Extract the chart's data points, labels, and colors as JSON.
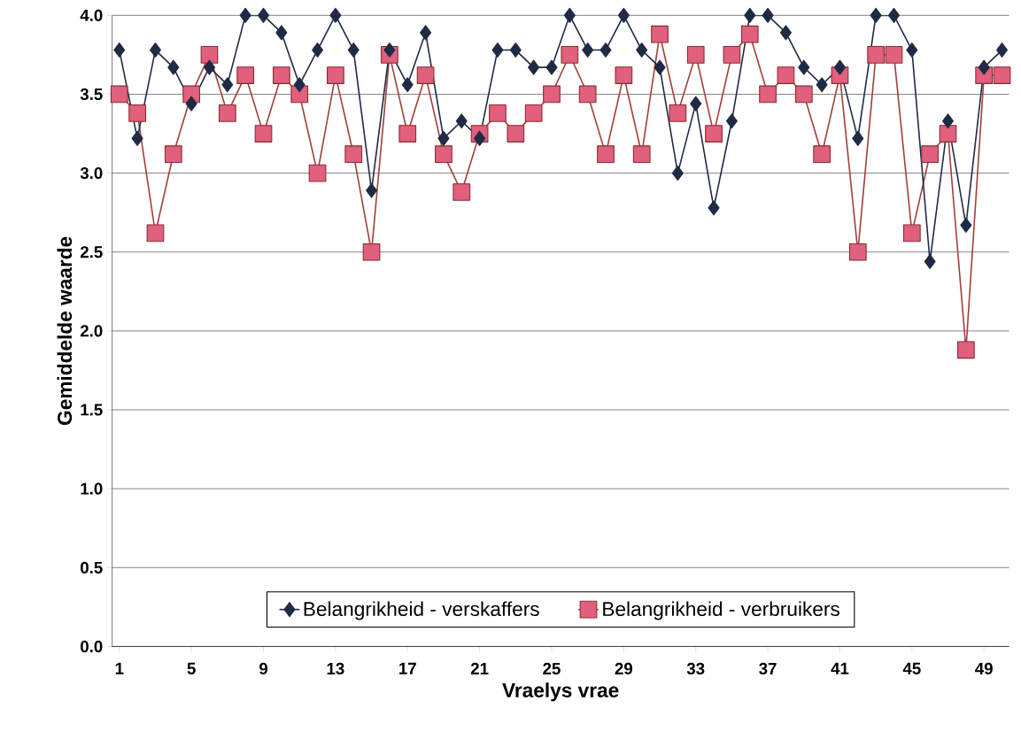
{
  "chart_data": {
    "type": "line",
    "xlabel": "Vraelys vrae",
    "ylabel": "Gemiddelde waarde",
    "x": [
      1,
      2,
      3,
      4,
      5,
      6,
      7,
      8,
      9,
      10,
      11,
      12,
      13,
      14,
      15,
      16,
      17,
      18,
      19,
      20,
      21,
      22,
      23,
      24,
      25,
      26,
      27,
      28,
      29,
      30,
      31,
      32,
      33,
      34,
      35,
      36,
      37,
      38,
      39,
      40,
      41,
      42,
      43,
      44,
      45,
      46,
      47,
      48,
      49,
      50
    ],
    "xlim": [
      0.6,
      50.4
    ],
    "xticks": [
      1,
      5,
      9,
      13,
      17,
      21,
      25,
      29,
      33,
      37,
      41,
      45,
      49
    ],
    "ylim": [
      0,
      4
    ],
    "yticks": [
      {
        "value": 0,
        "label": "0.0"
      },
      {
        "value": 0.5,
        "label": "0.5"
      },
      {
        "value": 1,
        "label": "1.0"
      },
      {
        "value": 1.5,
        "label": "1.5"
      },
      {
        "value": 2,
        "label": "2.0"
      },
      {
        "value": 2.5,
        "label": "2.5"
      },
      {
        "value": 3,
        "label": "3.0"
      },
      {
        "value": 3.5,
        "label": "3.5"
      },
      {
        "value": 4,
        "label": "4.0"
      }
    ],
    "grid": "y",
    "legend": "bottom",
    "series": [
      {
        "name": "Belangrikheid - verskaffers",
        "color": "#1f2a44",
        "marker": "diamond",
        "values": [
          3.78,
          3.22,
          3.78,
          3.67,
          3.44,
          3.67,
          3.56,
          4.0,
          4.0,
          3.89,
          3.56,
          3.78,
          4.0,
          3.78,
          2.89,
          3.78,
          3.56,
          3.89,
          3.22,
          3.33,
          3.22,
          3.78,
          3.78,
          3.67,
          3.67,
          4.0,
          3.78,
          3.78,
          4.0,
          3.78,
          3.67,
          3.0,
          3.44,
          2.78,
          3.33,
          4.0,
          4.0,
          3.89,
          3.67,
          3.56,
          3.67,
          3.22,
          4.0,
          4.0,
          3.78,
          2.44,
          3.33,
          2.67,
          3.67,
          3.78
        ]
      },
      {
        "name": "Belangrikheid - verbruikers",
        "color": "#e0607e",
        "marker": "square",
        "values": [
          3.5,
          3.38,
          2.62,
          3.12,
          3.5,
          3.75,
          3.38,
          3.62,
          3.25,
          3.62,
          3.5,
          3.0,
          3.62,
          3.12,
          2.5,
          3.75,
          3.25,
          3.62,
          3.12,
          2.88,
          3.25,
          3.38,
          3.25,
          3.38,
          3.5,
          3.75,
          3.5,
          3.12,
          3.62,
          3.12,
          3.88,
          3.38,
          3.75,
          3.25,
          3.75,
          3.88,
          3.5,
          3.62,
          3.5,
          3.12,
          3.62,
          2.5,
          3.75,
          3.75,
          2.62,
          3.12,
          3.25,
          1.88,
          3.62,
          3.62
        ]
      }
    ]
  }
}
